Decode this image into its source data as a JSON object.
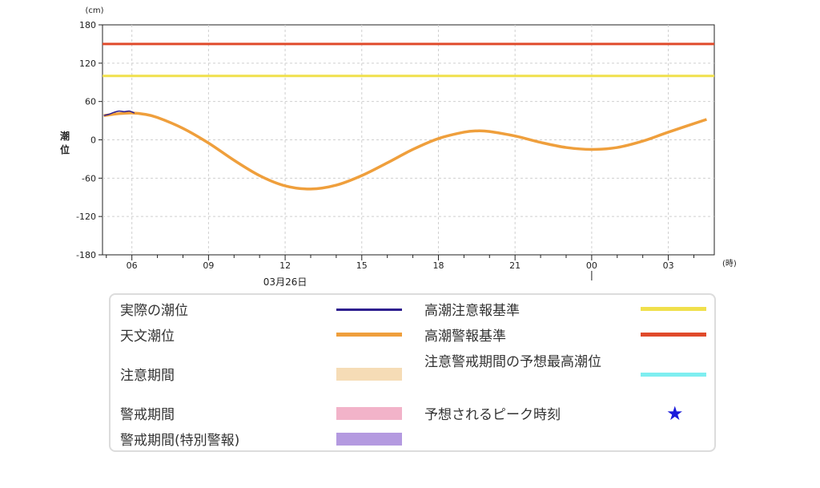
{
  "chart_data": {
    "type": "line",
    "ylabel": "潮位",
    "yunit": "(cm)",
    "xunit": "(時)",
    "date_label": "03月26日",
    "ylim": [
      -180,
      180
    ],
    "yticks": [
      180,
      120,
      60,
      0,
      -60,
      -120,
      -180
    ],
    "xticks": [
      "06",
      "09",
      "12",
      "15",
      "18",
      "21",
      "00",
      "03"
    ],
    "grid": true,
    "thresholds": [
      {
        "name": "高潮注意報基準",
        "value": 100,
        "color": "#f0e04c"
      },
      {
        "name": "高潮警報基準",
        "value": 150,
        "color": "#e04a2a"
      }
    ],
    "series": [
      {
        "name": "天文潮位",
        "color": "#ef9f3c",
        "x_hours": [
          4.9,
          5.5,
          6,
          6.5,
          7,
          8,
          9,
          10,
          11,
          12,
          13,
          14,
          15,
          16,
          17,
          18,
          19,
          19.5,
          20,
          21,
          22,
          23,
          24,
          25,
          26,
          27,
          28.5
        ],
        "values": [
          38,
          41,
          42,
          40,
          35,
          18,
          -5,
          -32,
          -56,
          -72,
          -77,
          -71,
          -56,
          -36,
          -15,
          2,
          12,
          14,
          13,
          6,
          -4,
          -12,
          -15,
          -12,
          -2,
          12,
          32
        ]
      },
      {
        "name": "実際の潮位",
        "color": "#2e1f8f",
        "x_hours": [
          4.9,
          5.1,
          5.3,
          5.5,
          5.7,
          5.9,
          6.1
        ],
        "values": [
          38,
          40,
          43,
          45,
          44,
          45,
          42
        ]
      }
    ]
  },
  "legend": {
    "col1": [
      {
        "label": "実際の潮位",
        "color": "#2e1f8f",
        "kind": "line"
      },
      {
        "label": "天文潮位",
        "color": "#ef9f3c",
        "kind": "line"
      },
      {
        "label": "注意期間",
        "color": "#f6dcb6",
        "kind": "box"
      },
      {
        "label": "警戒期間",
        "color": "#f2b3c9",
        "kind": "box"
      },
      {
        "label": "警戒期間(特別警報)",
        "color": "#b49ae0",
        "kind": "box"
      }
    ],
    "col2": [
      {
        "label": "高潮注意報基準",
        "color": "#f0e04c",
        "kind": "line"
      },
      {
        "label": "高潮警報基準",
        "color": "#e04a2a",
        "kind": "line"
      },
      {
        "label": "注意警戒期間の予想最高潮位",
        "color": "#7eeef0",
        "kind": "line"
      },
      {
        "label": "予想されるピーク時刻",
        "color": "#1a1adb",
        "kind": "star",
        "icon": "star-icon"
      }
    ]
  }
}
